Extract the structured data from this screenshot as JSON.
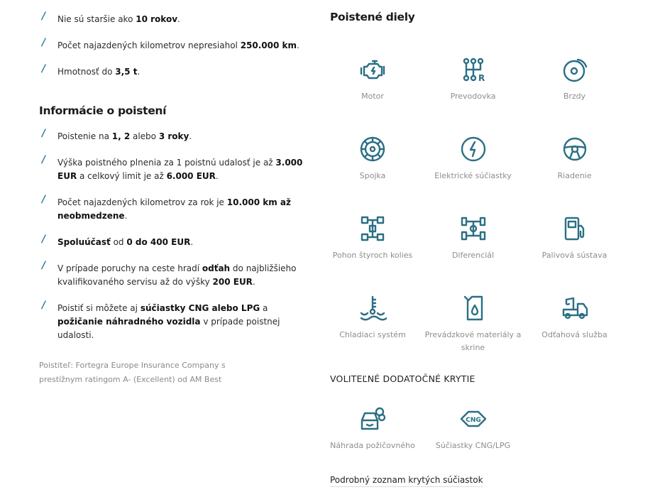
{
  "requirements": [
    [
      {
        "t": "Nie sú staršie ako "
      },
      {
        "t": "10 rokov",
        "b": true
      },
      {
        "t": "."
      }
    ],
    [
      {
        "t": "Počet najazdených kilometrov nepresiahol "
      },
      {
        "t": "250.000 km",
        "b": true
      },
      {
        "t": "."
      }
    ],
    [
      {
        "t": "Hmotnosť do "
      },
      {
        "t": "3,5 t",
        "b": true
      },
      {
        "t": "."
      }
    ]
  ],
  "info_title": "Informácie o poistení",
  "info_items": [
    [
      {
        "t": "Poistenie na "
      },
      {
        "t": "1, 2",
        "b": true
      },
      {
        "t": " alebo "
      },
      {
        "t": "3 roky",
        "b": true
      },
      {
        "t": "."
      }
    ],
    [
      {
        "t": "Výška poistného plnenia za 1 poistnú udalosť je až "
      },
      {
        "t": "3.000 EUR",
        "b": true
      },
      {
        "t": " a celkový limit je až "
      },
      {
        "t": "6.000 EUR",
        "b": true
      },
      {
        "t": "."
      }
    ],
    [
      {
        "t": "Počet najazdených kilometrov za rok je "
      },
      {
        "t": "10.000 km až neobmedzene",
        "b": true
      },
      {
        "t": "."
      }
    ],
    [
      {
        "t": "Spoluúčasť",
        "b": true
      },
      {
        "t": " od "
      },
      {
        "t": "0 do 400 EUR",
        "b": true
      },
      {
        "t": "."
      }
    ],
    [
      {
        "t": "V prípade poruchy na ceste hradí "
      },
      {
        "t": "odťah",
        "b": true
      },
      {
        "t": " do najbližšieho kvalifikovaného servisu až do výšky "
      },
      {
        "t": "200 EUR",
        "b": true
      },
      {
        "t": "."
      }
    ],
    [
      {
        "t": "Poistiť si môžete aj "
      },
      {
        "t": "súčiastky CNG alebo LPG",
        "b": true
      },
      {
        "t": " a "
      },
      {
        "t": "požičanie náhradného vozidla",
        "b": true
      },
      {
        "t": " v prípade poistnej udalosti."
      }
    ]
  ],
  "insurer_note": "Poistiteľ: Fortegra Europe Insurance Company s prestížnym ratingom A- (Excellent) od AM Best",
  "parts_title": "Poistené diely",
  "icon_color": "#2a6f85",
  "bullet_color": "#2a7fa0",
  "parts": [
    {
      "label": "Motor",
      "icon": "engine-icon"
    },
    {
      "label": "Prevodovka",
      "icon": "gear-shift-icon"
    },
    {
      "label": "Brzdy",
      "icon": "brake-disc-icon"
    },
    {
      "label": "Spojka",
      "icon": "clutch-icon"
    },
    {
      "label": "Elektrické súčiastky",
      "icon": "lightning-icon"
    },
    {
      "label": "Riadenie",
      "icon": "steering-wheel-icon"
    },
    {
      "label": "Pohon štyroch kolies",
      "icon": "four-wheel-drive-icon"
    },
    {
      "label": "Diferenciál",
      "icon": "differential-icon"
    },
    {
      "label": "Palivová sústava",
      "icon": "fuel-pump-icon"
    },
    {
      "label": "Chladiaci systém",
      "icon": "coolant-temperature-icon"
    },
    {
      "label": "Prevádzkové materiály a skrine",
      "icon": "oil-canister-icon"
    },
    {
      "label": "Odťahová služba",
      "icon": "tow-truck-icon"
    }
  ],
  "optional_title": "VOLITEĽNÉ DODATOČNÉ KRYTIE",
  "optional": [
    {
      "label": "Náhrada požičovného",
      "icon": "replacement-car-icon"
    },
    {
      "label": "Súčiastky CNG/LPG",
      "icon": "cng-icon",
      "icon_text": "CNG"
    }
  ],
  "detail_link": "Podrobný zoznam krytých súčiastok"
}
